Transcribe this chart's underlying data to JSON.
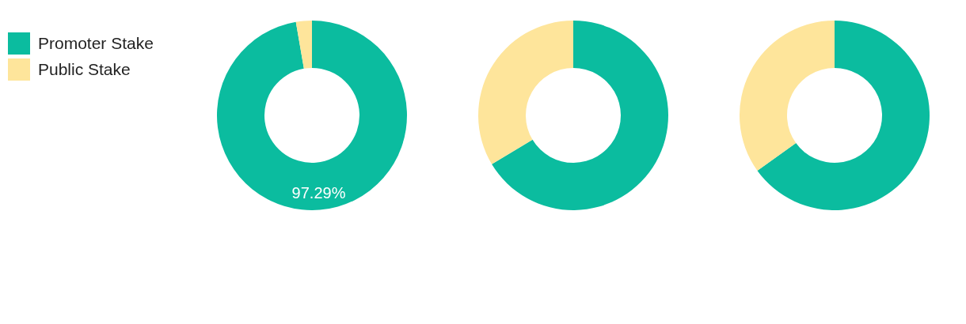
{
  "chart_data": [
    {
      "type": "donut",
      "categories": [
        "Promoter Stake",
        "Public Stake"
      ],
      "values": [
        97.29,
        2.71
      ],
      "colors": [
        "#0bbc9f",
        "#fee59b"
      ],
      "value_labels": [
        "97.29%",
        null
      ],
      "legend": "left"
    },
    {
      "type": "donut",
      "categories": [
        null,
        null
      ],
      "values": [
        66.4,
        33.6
      ],
      "colors": [
        "#0bbc9f",
        "#fee59b"
      ]
    },
    {
      "type": "donut",
      "categories": [
        null,
        null
      ],
      "values": [
        65.1,
        34.9
      ],
      "colors": [
        "#0bbc9f",
        "#fee59b"
      ]
    }
  ]
}
